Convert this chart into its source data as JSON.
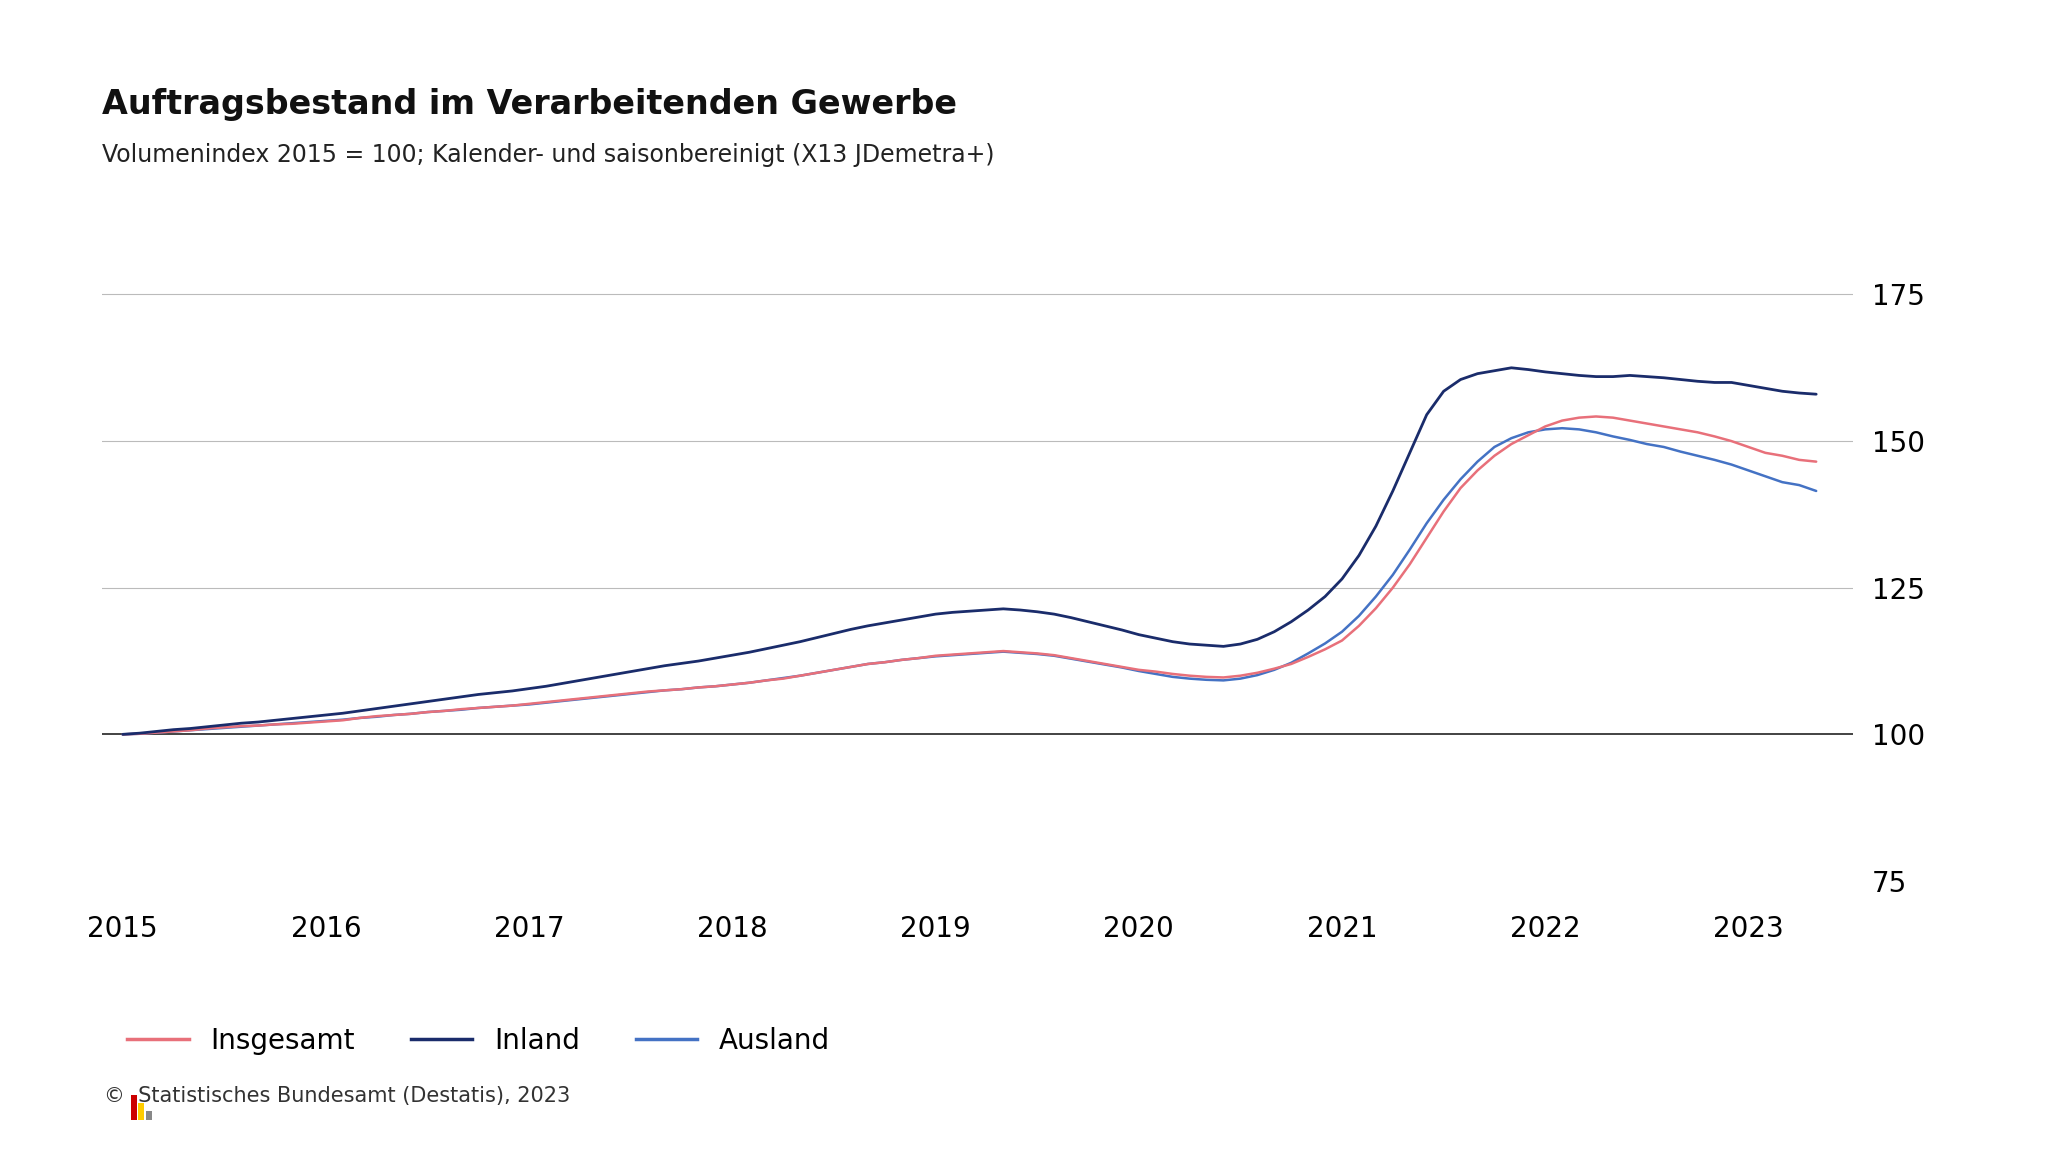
{
  "title": "Auftragsbestand im Verarbeitenden Gewerbe",
  "subtitle": "Volumenindex 2015 = 100; Kalender- und saisonbereinigt (X13 JDemetra+)",
  "footer": "©  Statistisches Bundesamt (Destatis), 2023",
  "color_insgesamt": "#E8707A",
  "color_inland": "#1A2C6B",
  "color_ausland": "#4472C4",
  "color_grid": "#BBBBBB",
  "color_baseline": "#333333",
  "ylim": [
    72,
    182
  ],
  "yticks": [
    75,
    100,
    125,
    150,
    175
  ],
  "legend_labels": [
    "Insgesamt",
    "Inland",
    "Ausland"
  ],
  "insgesamt": [
    100.0,
    100.1,
    100.3,
    100.5,
    100.7,
    101.0,
    101.2,
    101.4,
    101.5,
    101.7,
    101.8,
    102.0,
    102.2,
    102.4,
    102.8,
    103.1,
    103.3,
    103.5,
    103.8,
    104.0,
    104.3,
    104.5,
    104.7,
    104.9,
    105.2,
    105.5,
    105.8,
    106.1,
    106.4,
    106.7,
    107.0,
    107.3,
    107.5,
    107.7,
    108.0,
    108.2,
    108.5,
    108.8,
    109.2,
    109.5,
    110.0,
    110.5,
    111.0,
    111.5,
    112.0,
    112.3,
    112.7,
    113.0,
    113.4,
    113.6,
    113.8,
    114.0,
    114.2,
    114.0,
    113.8,
    113.5,
    113.0,
    112.5,
    112.0,
    111.5,
    111.0,
    110.7,
    110.3,
    110.0,
    109.8,
    109.7,
    110.0,
    110.5,
    111.2,
    112.0,
    113.2,
    114.5,
    116.0,
    118.5,
    121.5,
    125.0,
    129.0,
    133.5,
    138.0,
    142.0,
    145.0,
    147.5,
    149.5,
    151.0,
    152.5,
    153.5,
    154.0,
    154.2,
    154.0,
    153.5,
    153.0,
    152.5,
    152.0,
    151.5,
    150.8,
    150.0,
    149.0,
    148.0,
    147.5,
    146.8,
    146.5
  ],
  "inland": [
    100.0,
    100.2,
    100.5,
    100.8,
    101.0,
    101.3,
    101.6,
    101.9,
    102.1,
    102.4,
    102.7,
    103.0,
    103.3,
    103.6,
    104.0,
    104.4,
    104.8,
    105.2,
    105.6,
    106.0,
    106.4,
    106.8,
    107.1,
    107.4,
    107.8,
    108.2,
    108.7,
    109.2,
    109.7,
    110.2,
    110.7,
    111.2,
    111.7,
    112.1,
    112.5,
    113.0,
    113.5,
    114.0,
    114.6,
    115.2,
    115.8,
    116.5,
    117.2,
    117.9,
    118.5,
    119.0,
    119.5,
    120.0,
    120.5,
    120.8,
    121.0,
    121.2,
    121.4,
    121.2,
    120.9,
    120.5,
    119.9,
    119.2,
    118.5,
    117.8,
    117.0,
    116.4,
    115.8,
    115.4,
    115.2,
    115.0,
    115.4,
    116.2,
    117.5,
    119.2,
    121.2,
    123.5,
    126.5,
    130.5,
    135.5,
    141.5,
    148.0,
    154.5,
    158.5,
    160.5,
    161.5,
    162.0,
    162.5,
    162.2,
    161.8,
    161.5,
    161.2,
    161.0,
    161.0,
    161.2,
    161.0,
    160.8,
    160.5,
    160.2,
    160.0,
    160.0,
    159.5,
    159.0,
    158.5,
    158.2,
    158.0
  ],
  "ausland": [
    100.0,
    100.1,
    100.3,
    100.5,
    100.7,
    100.9,
    101.1,
    101.3,
    101.5,
    101.7,
    101.9,
    102.1,
    102.3,
    102.5,
    102.8,
    103.0,
    103.3,
    103.5,
    103.8,
    104.0,
    104.2,
    104.5,
    104.7,
    104.9,
    105.1,
    105.4,
    105.7,
    106.0,
    106.3,
    106.6,
    106.9,
    107.2,
    107.5,
    107.7,
    108.0,
    108.2,
    108.5,
    108.8,
    109.2,
    109.6,
    110.0,
    110.5,
    111.0,
    111.5,
    112.0,
    112.3,
    112.7,
    113.0,
    113.3,
    113.5,
    113.7,
    113.9,
    114.1,
    113.9,
    113.7,
    113.4,
    112.9,
    112.4,
    111.9,
    111.4,
    110.8,
    110.3,
    109.8,
    109.5,
    109.3,
    109.2,
    109.5,
    110.1,
    111.0,
    112.2,
    113.8,
    115.5,
    117.5,
    120.2,
    123.5,
    127.2,
    131.5,
    136.0,
    140.0,
    143.5,
    146.5,
    149.0,
    150.5,
    151.5,
    152.0,
    152.2,
    152.0,
    151.5,
    150.8,
    150.2,
    149.5,
    149.0,
    148.2,
    147.5,
    146.8,
    146.0,
    145.0,
    144.0,
    143.0,
    142.5,
    141.5
  ]
}
